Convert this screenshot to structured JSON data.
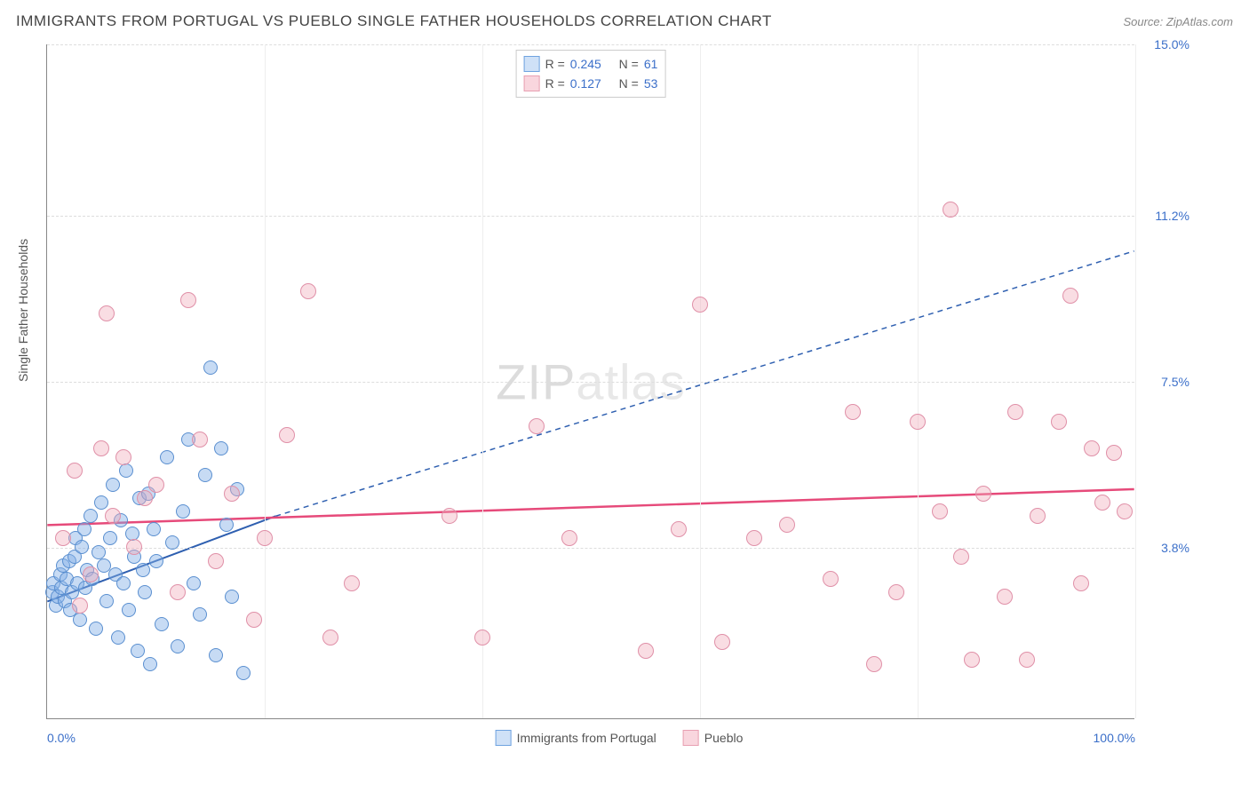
{
  "header": {
    "title": "IMMIGRANTS FROM PORTUGAL VS PUEBLO SINGLE FATHER HOUSEHOLDS CORRELATION CHART",
    "source": "Source: ZipAtlas.com"
  },
  "watermark": {
    "bold": "ZIP",
    "light": "atlas"
  },
  "chart": {
    "type": "scatter",
    "ylabel": "Single Father Households",
    "xlim": [
      0,
      100
    ],
    "ylim": [
      0,
      15
    ],
    "yticks": [
      {
        "v": 3.8,
        "label": "3.8%"
      },
      {
        "v": 7.5,
        "label": "7.5%"
      },
      {
        "v": 11.2,
        "label": "11.2%"
      },
      {
        "v": 15.0,
        "label": "15.0%"
      }
    ],
    "xticks": [
      {
        "v": 0,
        "label": "0.0%"
      },
      {
        "v": 100,
        "label": "100.0%"
      }
    ],
    "xgrid": [
      20,
      40,
      60,
      80,
      100
    ],
    "stats_legend": [
      {
        "color_fill": "#cfe1f7",
        "color_stroke": "#6fa3e0",
        "r": "0.245",
        "n": "61"
      },
      {
        "color_fill": "#f9d6de",
        "color_stroke": "#e8a0b2",
        "r": "0.127",
        "n": "53"
      }
    ],
    "bottom_legend": [
      {
        "label": "Immigrants from Portugal",
        "fill": "#cfe1f7",
        "stroke": "#6fa3e0"
      },
      {
        "label": "Pueblo",
        "fill": "#f9d6de",
        "stroke": "#e8a0b2"
      }
    ],
    "series": [
      {
        "name": "portugal",
        "fill": "rgba(130,175,230,0.45)",
        "stroke": "#5a8fd0",
        "radius": 8,
        "trend": {
          "x1": 0,
          "y1": 2.6,
          "x2": 21,
          "y2": 4.5,
          "x2_ext": 100,
          "y2_ext": 10.4,
          "color": "#2e5fb0",
          "width": 2
        },
        "points": [
          [
            0.5,
            2.8
          ],
          [
            0.6,
            3.0
          ],
          [
            0.8,
            2.5
          ],
          [
            1.0,
            2.7
          ],
          [
            1.2,
            3.2
          ],
          [
            1.3,
            2.9
          ],
          [
            1.5,
            3.4
          ],
          [
            1.6,
            2.6
          ],
          [
            1.8,
            3.1
          ],
          [
            2.0,
            3.5
          ],
          [
            2.1,
            2.4
          ],
          [
            2.3,
            2.8
          ],
          [
            2.5,
            3.6
          ],
          [
            2.6,
            4.0
          ],
          [
            2.8,
            3.0
          ],
          [
            3.0,
            2.2
          ],
          [
            3.2,
            3.8
          ],
          [
            3.4,
            4.2
          ],
          [
            3.5,
            2.9
          ],
          [
            3.7,
            3.3
          ],
          [
            4.0,
            4.5
          ],
          [
            4.2,
            3.1
          ],
          [
            4.5,
            2.0
          ],
          [
            4.7,
            3.7
          ],
          [
            5.0,
            4.8
          ],
          [
            5.2,
            3.4
          ],
          [
            5.5,
            2.6
          ],
          [
            5.8,
            4.0
          ],
          [
            6.0,
            5.2
          ],
          [
            6.3,
            3.2
          ],
          [
            6.5,
            1.8
          ],
          [
            6.8,
            4.4
          ],
          [
            7.0,
            3.0
          ],
          [
            7.3,
            5.5
          ],
          [
            7.5,
            2.4
          ],
          [
            7.8,
            4.1
          ],
          [
            8.0,
            3.6
          ],
          [
            8.3,
            1.5
          ],
          [
            8.5,
            4.9
          ],
          [
            8.8,
            3.3
          ],
          [
            9.0,
            2.8
          ],
          [
            9.3,
            5.0
          ],
          [
            9.5,
            1.2
          ],
          [
            9.8,
            4.2
          ],
          [
            10.0,
            3.5
          ],
          [
            10.5,
            2.1
          ],
          [
            11.0,
            5.8
          ],
          [
            11.5,
            3.9
          ],
          [
            12.0,
            1.6
          ],
          [
            12.5,
            4.6
          ],
          [
            13.0,
            6.2
          ],
          [
            13.5,
            3.0
          ],
          [
            14.0,
            2.3
          ],
          [
            14.5,
            5.4
          ],
          [
            15.0,
            7.8
          ],
          [
            15.5,
            1.4
          ],
          [
            16.0,
            6.0
          ],
          [
            16.5,
            4.3
          ],
          [
            17.0,
            2.7
          ],
          [
            17.5,
            5.1
          ],
          [
            18.0,
            1.0
          ]
        ]
      },
      {
        "name": "pueblo",
        "fill": "rgba(240,170,185,0.40)",
        "stroke": "#e090a8",
        "radius": 9,
        "trend": {
          "x1": 0,
          "y1": 4.3,
          "x2": 100,
          "y2": 5.1,
          "color": "#e64a7a",
          "width": 2.5
        },
        "points": [
          [
            1.5,
            4.0
          ],
          [
            2.5,
            5.5
          ],
          [
            3.0,
            2.5
          ],
          [
            4.0,
            3.2
          ],
          [
            5.0,
            6.0
          ],
          [
            5.5,
            9.0
          ],
          [
            6.0,
            4.5
          ],
          [
            7.0,
            5.8
          ],
          [
            8.0,
            3.8
          ],
          [
            9.0,
            4.9
          ],
          [
            10.0,
            5.2
          ],
          [
            12.0,
            2.8
          ],
          [
            13.0,
            9.3
          ],
          [
            14.0,
            6.2
          ],
          [
            15.5,
            3.5
          ],
          [
            17.0,
            5.0
          ],
          [
            19.0,
            2.2
          ],
          [
            20.0,
            4.0
          ],
          [
            22.0,
            6.3
          ],
          [
            24.0,
            9.5
          ],
          [
            26.0,
            1.8
          ],
          [
            28.0,
            3.0
          ],
          [
            37.0,
            4.5
          ],
          [
            40.0,
            1.8
          ],
          [
            45.0,
            6.5
          ],
          [
            48.0,
            4.0
          ],
          [
            55.0,
            1.5
          ],
          [
            58.0,
            4.2
          ],
          [
            60.0,
            9.2
          ],
          [
            62.0,
            1.7
          ],
          [
            65.0,
            4.0
          ],
          [
            68.0,
            4.3
          ],
          [
            72.0,
            3.1
          ],
          [
            74.0,
            6.8
          ],
          [
            76.0,
            1.2
          ],
          [
            78.0,
            2.8
          ],
          [
            80.0,
            6.6
          ],
          [
            82.0,
            4.6
          ],
          [
            83.0,
            11.3
          ],
          [
            84.0,
            3.6
          ],
          [
            85.0,
            1.3
          ],
          [
            86.0,
            5.0
          ],
          [
            88.0,
            2.7
          ],
          [
            89.0,
            6.8
          ],
          [
            90.0,
            1.3
          ],
          [
            91.0,
            4.5
          ],
          [
            93.0,
            6.6
          ],
          [
            94.0,
            9.4
          ],
          [
            95.0,
            3.0
          ],
          [
            96.0,
            6.0
          ],
          [
            97.0,
            4.8
          ],
          [
            98.0,
            5.9
          ],
          [
            99.0,
            4.6
          ]
        ]
      }
    ]
  }
}
